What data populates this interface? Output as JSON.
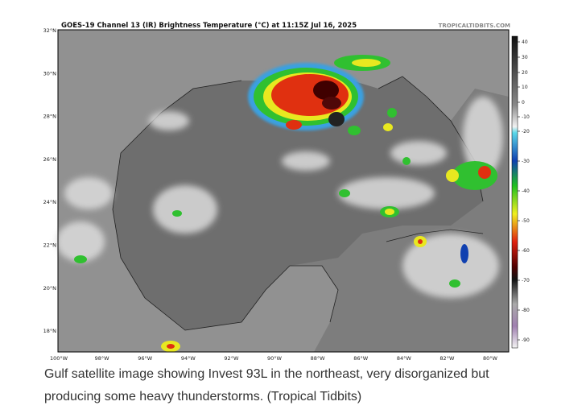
{
  "image": {
    "title": "GOES-19 Channel 13 (IR) Brightness Temperature (°C) at 11:15Z Jul 16, 2025",
    "credit": "TROPICALTIDBITS.COM",
    "lat_labels": [
      "32°N",
      "30°N",
      "28°N",
      "26°N",
      "24°N",
      "22°N",
      "20°N",
      "18°N"
    ],
    "lon_labels": [
      "100°W",
      "98°W",
      "96°W",
      "94°W",
      "92°W",
      "90°W",
      "88°W",
      "86°W",
      "84°W",
      "82°W",
      "80°W"
    ],
    "colorbar_ticks": [
      40,
      30,
      20,
      10,
      0,
      -10,
      -20,
      -30,
      -40,
      -50,
      -60,
      -70,
      -80,
      -90
    ]
  },
  "caption": "Gulf satellite image showing Invest 93L in the northeast, very disorganized but producing some heavy thunderstorms. (Tropical Tidbits)"
}
